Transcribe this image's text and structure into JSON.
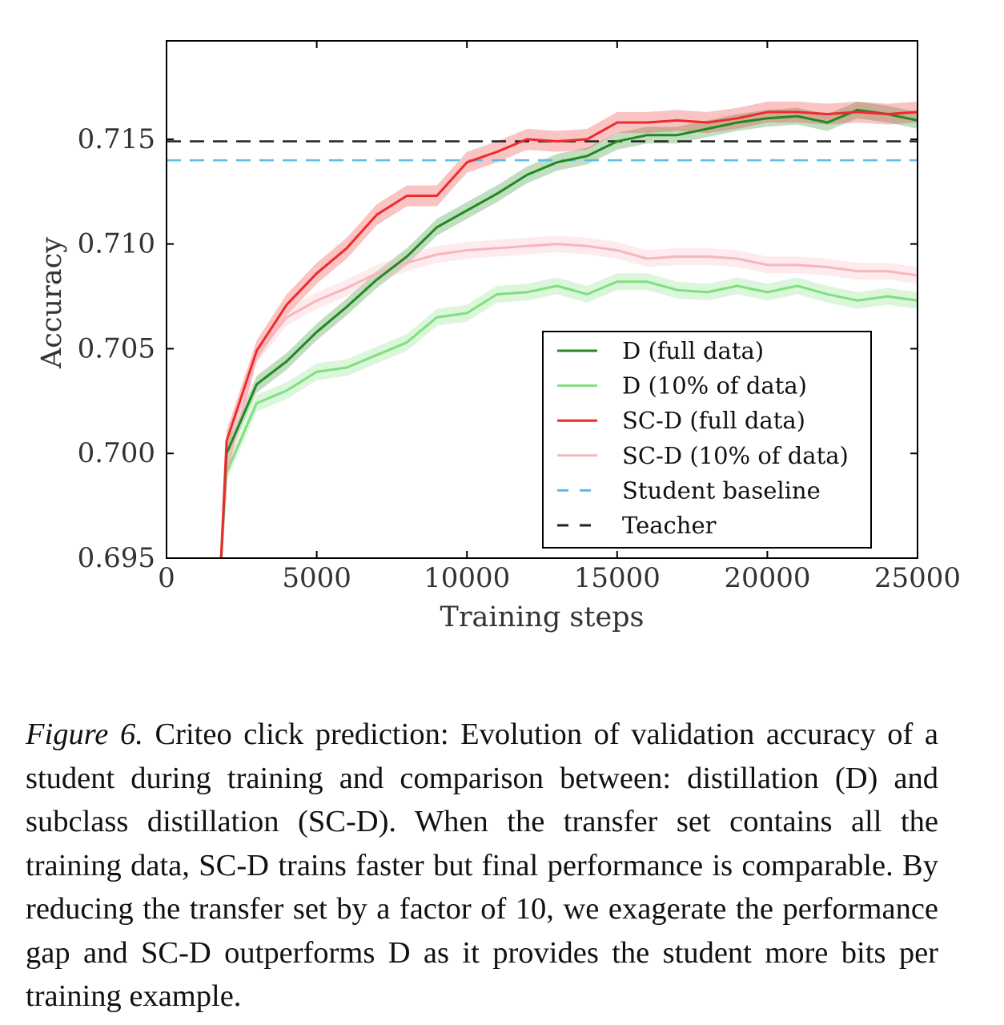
{
  "caption": {
    "label": "Figure 6.",
    "text": "Criteo click prediction: Evolution of validation accuracy of a student during training and comparison between: distillation (D) and subclass distillation (SC-D). When the transfer set contains all the training data, SC-D trains faster but final performance is comparable. By reducing the transfer set by a factor of 10, we exagerate the performance gap and SC-D outperforms D as it provides the student more bits per training example."
  },
  "chart_data": {
    "type": "line",
    "title": "",
    "xlabel": "Training steps",
    "ylabel": "Accuracy",
    "xlim": [
      0,
      25000
    ],
    "ylim": [
      0.695,
      0.7197
    ],
    "xticks": [
      0,
      5000,
      10000,
      15000,
      20000,
      25000
    ],
    "yticks": [
      0.695,
      0.7,
      0.705,
      0.71,
      0.715
    ],
    "xtick_labels": [
      "0",
      "5000",
      "10000",
      "15000",
      "20000",
      "25000"
    ],
    "ytick_labels": [
      "0.695",
      "0.700",
      "0.705",
      "0.710",
      "0.715"
    ],
    "grid": false,
    "legend_position": "lower-right",
    "series": [
      {
        "name": "D (full data)",
        "color": "#1f8a1f",
        "style": "solid",
        "band": 0.0004,
        "x": [
          1800,
          2000,
          3000,
          4000,
          5000,
          6000,
          7000,
          8000,
          9000,
          10000,
          11000,
          12000,
          13000,
          14000,
          15000,
          16000,
          17000,
          18000,
          19000,
          20000,
          21000,
          22000,
          23000,
          24000,
          25000
        ],
        "y": [
          0.6945,
          0.7,
          0.7033,
          0.7044,
          0.7058,
          0.707,
          0.7083,
          0.7094,
          0.7108,
          0.7116,
          0.7124,
          0.7133,
          0.7139,
          0.7142,
          0.7149,
          0.7152,
          0.7152,
          0.7155,
          0.7158,
          0.716,
          0.7161,
          0.7158,
          0.7164,
          0.7162,
          0.7159
        ]
      },
      {
        "name": "D (10% of data)",
        "color": "#7fe07f",
        "style": "solid",
        "band": 0.0004,
        "x": [
          1800,
          2000,
          3000,
          4000,
          5000,
          6000,
          7000,
          8000,
          9000,
          10000,
          11000,
          12000,
          13000,
          14000,
          15000,
          16000,
          17000,
          18000,
          19000,
          20000,
          21000,
          22000,
          23000,
          24000,
          25000
        ],
        "y": [
          0.6945,
          0.6991,
          0.7024,
          0.703,
          0.7039,
          0.7041,
          0.7047,
          0.7053,
          0.7065,
          0.7067,
          0.7076,
          0.7077,
          0.708,
          0.7076,
          0.7082,
          0.7082,
          0.7078,
          0.7077,
          0.708,
          0.7077,
          0.708,
          0.7076,
          0.7073,
          0.7075,
          0.7073
        ]
      },
      {
        "name": "SC-D (full data)",
        "color": "#ee2b2b",
        "style": "solid",
        "band": 0.0005,
        "x": [
          1800,
          2000,
          3000,
          4000,
          5000,
          6000,
          7000,
          8000,
          9000,
          10000,
          11000,
          12000,
          13000,
          14000,
          15000,
          16000,
          17000,
          18000,
          19000,
          20000,
          21000,
          22000,
          23000,
          24000,
          25000
        ],
        "y": [
          0.6945,
          0.7006,
          0.7049,
          0.7071,
          0.7086,
          0.7098,
          0.7114,
          0.7123,
          0.7123,
          0.7139,
          0.7144,
          0.715,
          0.7149,
          0.715,
          0.7158,
          0.7158,
          0.7159,
          0.7158,
          0.716,
          0.7163,
          0.7163,
          0.7162,
          0.7163,
          0.7162,
          0.7163
        ]
      },
      {
        "name": "SC-D (10% of data)",
        "color": "#f7b6bf",
        "style": "solid",
        "band": 0.0004,
        "x": [
          1800,
          2000,
          3000,
          4000,
          5000,
          6000,
          7000,
          8000,
          9000,
          10000,
          11000,
          12000,
          13000,
          14000,
          15000,
          16000,
          17000,
          18000,
          19000,
          20000,
          21000,
          22000,
          23000,
          24000,
          25000
        ],
        "y": [
          0.6945,
          0.6992,
          0.7047,
          0.7065,
          0.7073,
          0.7079,
          0.7086,
          0.7091,
          0.7095,
          0.7097,
          0.7098,
          0.7099,
          0.71,
          0.7099,
          0.7097,
          0.7093,
          0.7094,
          0.7094,
          0.7093,
          0.709,
          0.709,
          0.7089,
          0.7087,
          0.7087,
          0.7085
        ]
      },
      {
        "name": "Student baseline",
        "color": "#5bbde0",
        "style": "dashed",
        "x": [
          0,
          25000
        ],
        "y": [
          0.714,
          0.714
        ]
      },
      {
        "name": "Teacher",
        "color": "#222222",
        "style": "dashed",
        "x": [
          0,
          25000
        ],
        "y": [
          0.7149,
          0.7149
        ]
      }
    ]
  }
}
